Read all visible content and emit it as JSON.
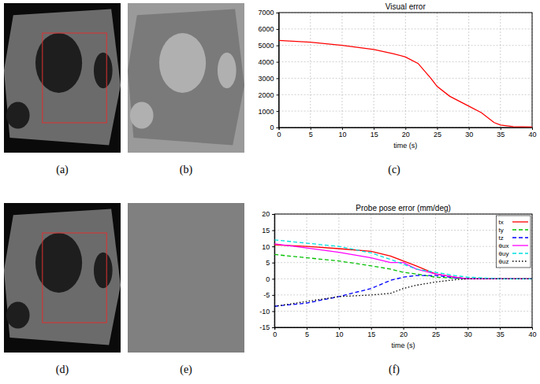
{
  "panels": {
    "labels": [
      "(a)",
      "(b)",
      "(c)",
      "(d)",
      "(e)",
      "(f)"
    ]
  },
  "chart_data": [
    {
      "type": "line",
      "title": "Visual error",
      "x_label": "time (s)",
      "x": [
        0,
        5,
        10,
        15,
        18,
        20,
        22,
        24,
        25,
        27,
        30,
        32,
        34,
        35,
        37,
        40
      ],
      "values": [
        5300,
        5200,
        5000,
        4750,
        4500,
        4300,
        3900,
        3000,
        2500,
        1900,
        1300,
        900,
        300,
        150,
        50,
        30
      ],
      "color": "#ff0000",
      "xlim": [
        0,
        40
      ],
      "xticks": [
        0,
        5,
        10,
        15,
        20,
        25,
        30,
        35,
        40
      ],
      "ylim": [
        0,
        7000
      ],
      "yticks": [
        0,
        1000,
        2000,
        3000,
        4000,
        5000,
        6000,
        7000
      ],
      "grid": true
    },
    {
      "type": "line",
      "title": "Probe pose error (mm/deg)",
      "x_label": "time (s)",
      "x": [
        0,
        5,
        10,
        15,
        18,
        20,
        22,
        25,
        28,
        30,
        35,
        40
      ],
      "series": [
        {
          "name": "tx",
          "color": "#ff0000",
          "line_style": "solid",
          "values": [
            10.5,
            10,
            9.3,
            8.5,
            7,
            5.5,
            4,
            1.5,
            0.5,
            0,
            0,
            0
          ]
        },
        {
          "name": "ty",
          "color": "#00c000",
          "line_style": "dashed",
          "values": [
            7.5,
            6.5,
            5.5,
            4,
            3,
            2,
            1.5,
            0.5,
            0.2,
            0,
            0,
            0
          ]
        },
        {
          "name": "tz",
          "color": "#0000ff",
          "line_style": "dashed",
          "values": [
            -8.5,
            -7.5,
            -5.5,
            -3,
            -0.5,
            0.5,
            1,
            1,
            0.3,
            0,
            0,
            0
          ]
        },
        {
          "name": "θux",
          "color": "#ff00ff",
          "line_style": "solid",
          "values": [
            10.8,
            9.5,
            8.2,
            6.5,
            5,
            5,
            3,
            1.5,
            0.5,
            0,
            0,
            0
          ]
        },
        {
          "name": "θuy",
          "color": "#00e0e0",
          "line_style": "dashed",
          "values": [
            12,
            11,
            10,
            8,
            6,
            4.5,
            3,
            2,
            1,
            0.5,
            0,
            0
          ]
        },
        {
          "name": "θuz",
          "color": "#000000",
          "line_style": "dotted",
          "values": [
            -8.5,
            -7,
            -5.5,
            -5,
            -4.5,
            -3,
            -2,
            -1,
            -0.3,
            0,
            0,
            0
          ]
        }
      ],
      "legend": "upper right",
      "xlim": [
        0,
        40
      ],
      "xticks": [
        0,
        5,
        10,
        15,
        20,
        25,
        30,
        35,
        40
      ],
      "ylim": [
        -15,
        20
      ],
      "yticks": [
        -15,
        -10,
        -5,
        0,
        5,
        10,
        15,
        20
      ],
      "grid": true
    }
  ]
}
